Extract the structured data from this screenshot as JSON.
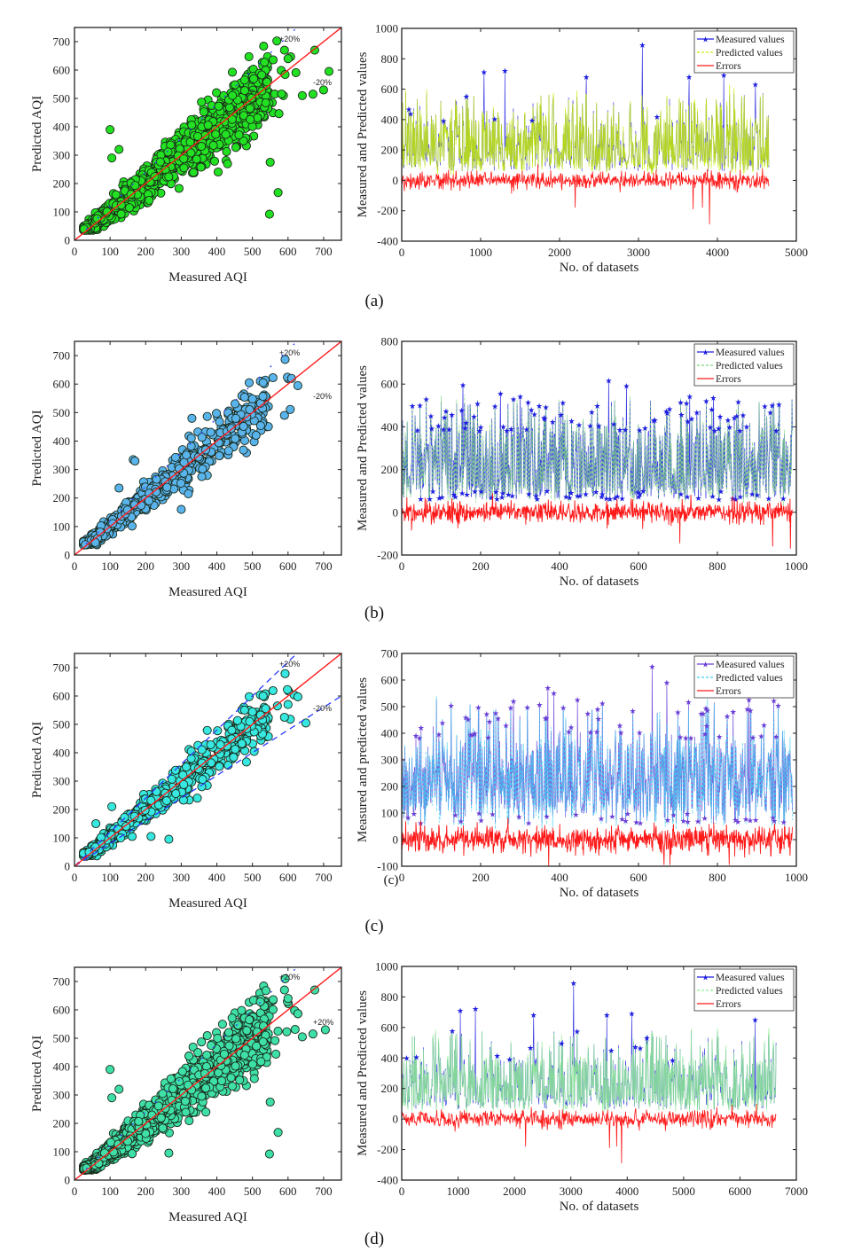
{
  "chart_data": [
    {
      "panel": "a",
      "type": "scatter",
      "xlabel": "Measured AQI",
      "ylabel": "Predicted AQI",
      "xlim": [
        0,
        750
      ],
      "ylim": [
        0,
        750
      ],
      "xticks": [
        "0",
        "100",
        "200",
        "300",
        "400",
        "500",
        "600",
        "700"
      ],
      "yticks": [
        "0",
        "100",
        "200",
        "300",
        "400",
        "500",
        "600",
        "700"
      ],
      "marker_color": "#22e022",
      "reference_line": "y = x",
      "band_labels": [
        "+20%",
        "-20%"
      ],
      "band_lines_full": false,
      "n_points": 1400,
      "spread": 0.17,
      "outliers": [
        [
          100,
          390
        ],
        [
          105,
          290
        ],
        [
          125,
          320
        ],
        [
          550,
          275
        ],
        [
          572,
          168
        ],
        [
          548,
          92
        ],
        [
          700,
          530
        ],
        [
          715,
          595
        ],
        [
          640,
          510
        ],
        [
          670,
          515
        ],
        [
          675,
          670
        ],
        [
          590,
          670
        ],
        [
          600,
          640
        ]
      ]
    },
    {
      "panel": "a",
      "type": "line",
      "xlabel": "No. of datasets",
      "ylabel": "Measured and Predicted values",
      "xlim": [
        0,
        5000
      ],
      "ylim": [
        -400,
        1000
      ],
      "xticks": [
        "0",
        "1000",
        "2000",
        "3000",
        "4000",
        "5000"
      ],
      "yticks": [
        "-400",
        "-200",
        "0",
        "200",
        "400",
        "600",
        "800",
        "1000"
      ],
      "n": 4650,
      "series": [
        {
          "name": "Measured values",
          "color": "#1f1fe0"
        },
        {
          "name": "Predicted values",
          "color": "#c8f000"
        },
        {
          "name": "Errors",
          "color": "#ff1a1a"
        }
      ],
      "peaks": [
        [
          1040,
          710
        ],
        [
          1310,
          720
        ],
        [
          3050,
          890
        ],
        [
          4080,
          690
        ],
        [
          2340,
          680
        ],
        [
          3640,
          680
        ],
        [
          4480,
          630
        ]
      ],
      "error_dips": [
        [
          2200,
          -180
        ],
        [
          3690,
          -190
        ],
        [
          3810,
          -180
        ],
        [
          3900,
          -290
        ]
      ]
    },
    {
      "panel": "b",
      "type": "scatter",
      "xlabel": "Measured AQI",
      "ylabel": "Predicted AQI",
      "xlim": [
        0,
        750
      ],
      "ylim": [
        0,
        750
      ],
      "xticks": [
        "0",
        "100",
        "200",
        "300",
        "400",
        "500",
        "600",
        "700"
      ],
      "yticks": [
        "0",
        "100",
        "200",
        "300",
        "400",
        "500",
        "600",
        "700"
      ],
      "marker_color": "#5ab4ec",
      "reference_line": "y = x",
      "band_labels": [
        "+20%",
        "-20%"
      ],
      "band_lines_full": false,
      "n_points": 650,
      "spread": 0.14,
      "outliers": [
        [
          165,
          335
        ],
        [
          170,
          330
        ],
        [
          125,
          235
        ],
        [
          330,
          480
        ],
        [
          610,
          620
        ],
        [
          590,
          490
        ],
        [
          510,
          420
        ],
        [
          300,
          160
        ],
        [
          320,
          215
        ]
      ]
    },
    {
      "panel": "b",
      "type": "line",
      "xlabel": "No. of datasets",
      "ylabel": "Measured and Predicted values",
      "xlim": [
        0,
        1000
      ],
      "ylim": [
        -200,
        800
      ],
      "xticks": [
        "0",
        "200",
        "400",
        "600",
        "800",
        "1000"
      ],
      "yticks": [
        "-200",
        "0",
        "200",
        "400",
        "600",
        "800"
      ],
      "n": 990,
      "series": [
        {
          "name": "Measured values",
          "color": "#1f1fe0"
        },
        {
          "name": "Predicted values",
          "color": "#7fd87f"
        },
        {
          "name": "Errors",
          "color": "#ff1a1a"
        }
      ],
      "peaks": [
        [
          155,
          595
        ],
        [
          525,
          615
        ],
        [
          570,
          590
        ],
        [
          250,
          555
        ],
        [
          300,
          540
        ],
        [
          730,
          540
        ],
        [
          790,
          535
        ]
      ],
      "error_dips": [
        [
          705,
          -145
        ],
        [
          940,
          -160
        ],
        [
          985,
          -170
        ]
      ]
    },
    {
      "panel": "c",
      "type": "scatter",
      "xlabel": "Measured AQI",
      "ylabel": "Predicted AQI",
      "xlim": [
        0,
        750
      ],
      "ylim": [
        0,
        750
      ],
      "xticks": [
        "0",
        "100",
        "200",
        "300",
        "400",
        "500",
        "600",
        "700"
      ],
      "yticks": [
        "0",
        "100",
        "200",
        "300",
        "400",
        "500",
        "600",
        "700"
      ],
      "marker_color": "#36e8e0",
      "reference_line": "y = x",
      "band_labels": [
        "+20%",
        "-20%"
      ],
      "band_lines_full": true,
      "n_points": 650,
      "spread": 0.13,
      "outliers": [
        [
          265,
          95
        ],
        [
          215,
          105
        ],
        [
          345,
          240
        ],
        [
          650,
          505
        ],
        [
          600,
          570
        ],
        [
          570,
          565
        ],
        [
          590,
          525
        ],
        [
          105,
          210
        ],
        [
          60,
          150
        ]
      ]
    },
    {
      "panel": "c",
      "type": "line",
      "xlabel": "No. of datasets",
      "ylabel": "Measured and predicted values",
      "xlim": [
        0,
        1000
      ],
      "ylim": [
        -100,
        700
      ],
      "xticks": [
        "0",
        "200",
        "400",
        "600",
        "800",
        "1000"
      ],
      "yticks": [
        "-100",
        "0",
        "100",
        "200",
        "300",
        "400",
        "500",
        "600",
        "700"
      ],
      "n": 990,
      "series": [
        {
          "name": "Measured values",
          "color": "#6a3fd6"
        },
        {
          "name": "Predicted values",
          "color": "#3ed0f0"
        },
        {
          "name": "Errors",
          "color": "#ff1a1a"
        }
      ],
      "peaks": [
        [
          370,
          570
        ],
        [
          385,
          550
        ],
        [
          635,
          650
        ],
        [
          672,
          590
        ],
        [
          283,
          520
        ],
        [
          445,
          525
        ],
        [
          880,
          525
        ],
        [
          840,
          480
        ]
      ],
      "error_dips": [
        [
          372,
          -100
        ],
        [
          665,
          -95
        ],
        [
          680,
          -95
        ],
        [
          830,
          -95
        ]
      ]
    },
    {
      "panel": "d",
      "type": "scatter",
      "xlabel": "Measured AQI",
      "ylabel": "Predicted AQI",
      "xlim": [
        0,
        750
      ],
      "ylim": [
        0,
        750
      ],
      "xticks": [
        "0",
        "100",
        "200",
        "300",
        "400",
        "500",
        "600",
        "700"
      ],
      "yticks": [
        "0",
        "100",
        "200",
        "300",
        "400",
        "500",
        "600",
        "700"
      ],
      "marker_color": "#3ee0a8",
      "reference_line": "y = x",
      "band_labels": [
        "+20%",
        "+20%"
      ],
      "band_lines_full": false,
      "n_points": 1800,
      "spread": 0.17,
      "outliers": [
        [
          100,
          390
        ],
        [
          105,
          290
        ],
        [
          125,
          320
        ],
        [
          550,
          275
        ],
        [
          572,
          168
        ],
        [
          548,
          92
        ],
        [
          705,
          530
        ],
        [
          640,
          505
        ],
        [
          670,
          515
        ],
        [
          675,
          670
        ],
        [
          590,
          670
        ],
        [
          600,
          640
        ],
        [
          265,
          95
        ]
      ]
    },
    {
      "panel": "d",
      "type": "line",
      "xlabel": "No. of datasets",
      "ylabel": "Measured and Predicted values",
      "xlim": [
        0,
        7000
      ],
      "ylim": [
        -400,
        1000
      ],
      "xticks": [
        "0",
        "1000",
        "2000",
        "3000",
        "4000",
        "5000",
        "6000",
        "7000"
      ],
      "yticks": [
        "-400",
        "-200",
        "0",
        "200",
        "400",
        "600",
        "800",
        "1000"
      ],
      "n": 6640,
      "series": [
        {
          "name": "Measured values",
          "color": "#1f1fe0"
        },
        {
          "name": "Predicted values",
          "color": "#8ff08f"
        },
        {
          "name": "Errors",
          "color": "#ff1a1a"
        }
      ],
      "peaks": [
        [
          1040,
          710
        ],
        [
          1310,
          720
        ],
        [
          3050,
          890
        ],
        [
          4080,
          690
        ],
        [
          2340,
          680
        ],
        [
          3640,
          680
        ],
        [
          6270,
          650
        ]
      ],
      "error_dips": [
        [
          2200,
          -180
        ],
        [
          3690,
          -190
        ],
        [
          3810,
          -180
        ],
        [
          3900,
          -290
        ]
      ]
    }
  ],
  "captions": [
    "(a)",
    "(b)",
    "(c)",
    "(d)"
  ],
  "stray_label": "(c)"
}
